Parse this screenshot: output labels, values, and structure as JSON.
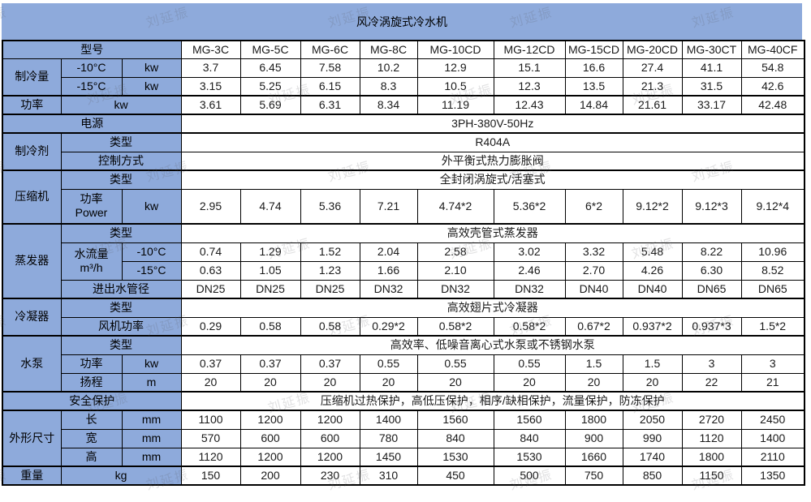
{
  "title": "风冷涡旋式冷水机",
  "watermark": {
    "text": "刘延振"
  },
  "colors": {
    "header_blue": "#8EAADB",
    "border": "#000000",
    "value_bg": "#FFFFFF"
  },
  "table": {
    "rows": [
      {
        "name": "row-model-header",
        "h": "header",
        "group_start": false,
        "cells": [
          {
            "text": "型号",
            "colspan": 3,
            "header": true,
            "name": "col-header-model"
          },
          {
            "text": "MG-3C",
            "name": "model-name"
          },
          {
            "text": "MG-5C",
            "name": "model-name"
          },
          {
            "text": "MG-6C",
            "name": "model-name"
          },
          {
            "text": "MG-8C",
            "name": "model-name"
          },
          {
            "text": "MG-10CD",
            "name": "model-name"
          },
          {
            "text": "MG-12CD",
            "name": "model-name"
          },
          {
            "text": "MG-15CD",
            "name": "model-name"
          },
          {
            "text": "MG-20CD",
            "name": "model-name"
          },
          {
            "text": "MG-30CT",
            "name": "model-name"
          },
          {
            "text": "MG-40CF",
            "name": "model-name"
          }
        ]
      },
      {
        "name": "row-cooling-minus10",
        "group_start": false,
        "cells": [
          {
            "text": "制冷量",
            "rowspan": 2,
            "header": true,
            "name": "row-label"
          },
          {
            "text": "-10°C",
            "header": true,
            "name": "sub-label"
          },
          {
            "text": "kw",
            "header": true,
            "name": "unit-label"
          },
          {
            "text": "3.7"
          },
          {
            "text": "6.45"
          },
          {
            "text": "7.58"
          },
          {
            "text": "10.2"
          },
          {
            "text": "12.9"
          },
          {
            "text": "15.1"
          },
          {
            "text": "16.6"
          },
          {
            "text": "27.4"
          },
          {
            "text": "41.1"
          },
          {
            "text": "54.8"
          }
        ]
      },
      {
        "name": "row-cooling-minus15",
        "group_start": false,
        "cells": [
          {
            "text": "-15°C",
            "header": true,
            "name": "sub-label"
          },
          {
            "text": "kw",
            "header": true,
            "name": "unit-label"
          },
          {
            "text": "3.15"
          },
          {
            "text": "5.25"
          },
          {
            "text": "6.15"
          },
          {
            "text": "8.3"
          },
          {
            "text": "10.5"
          },
          {
            "text": "12.3"
          },
          {
            "text": "13.5"
          },
          {
            "text": "21.3"
          },
          {
            "text": "31.5"
          },
          {
            "text": "42.6"
          }
        ]
      },
      {
        "name": "row-input-power",
        "group_start": true,
        "cells": [
          {
            "text": "功率",
            "header": true,
            "name": "row-label"
          },
          {
            "text": "kw",
            "colspan": 2,
            "header": true,
            "name": "unit-label"
          },
          {
            "text": "3.61"
          },
          {
            "text": "5.69"
          },
          {
            "text": "6.31"
          },
          {
            "text": "8.34"
          },
          {
            "text": "11.19"
          },
          {
            "text": "12.43"
          },
          {
            "text": "14.84"
          },
          {
            "text": "21.61"
          },
          {
            "text": "33.17"
          },
          {
            "text": "42.48"
          }
        ]
      },
      {
        "name": "row-power-supply",
        "group_start": true,
        "cells": [
          {
            "text": "电源",
            "colspan": 3,
            "header": true,
            "name": "row-label"
          },
          {
            "text": "3PH-380V-50Hz",
            "colspan": 10,
            "name": "span-value"
          }
        ]
      },
      {
        "name": "row-refrigerant-type",
        "group_start": true,
        "cells": [
          {
            "text": "制冷剂",
            "rowspan": 2,
            "header": true,
            "name": "row-label"
          },
          {
            "text": "类型",
            "colspan": 2,
            "header": true,
            "name": "sub-label"
          },
          {
            "text": "R404A",
            "colspan": 10,
            "name": "span-value"
          }
        ]
      },
      {
        "name": "row-refrigerant-control",
        "group_start": false,
        "cells": [
          {
            "text": "控制方式",
            "colspan": 2,
            "header": true,
            "name": "sub-label"
          },
          {
            "text": "外平衡式热力膨胀阀",
            "colspan": 10,
            "name": "span-value"
          }
        ]
      },
      {
        "name": "row-compressor-type",
        "group_start": true,
        "cells": [
          {
            "text": "压缩机",
            "rowspan": 2,
            "header": true,
            "name": "row-label"
          },
          {
            "text": "类型",
            "colspan": 2,
            "header": true,
            "name": "sub-label"
          },
          {
            "text": "全封闭涡旋式/活塞式",
            "colspan": 10,
            "name": "span-value"
          }
        ]
      },
      {
        "name": "row-compressor-power",
        "h": "tall",
        "group_start": false,
        "cells": [
          {
            "text": "功率\nPower",
            "header": true,
            "name": "sub-label"
          },
          {
            "text": "kw",
            "header": true,
            "name": "unit-label"
          },
          {
            "text": "2.95"
          },
          {
            "text": "4.74"
          },
          {
            "text": "5.36"
          },
          {
            "text": "7.21"
          },
          {
            "text": "4.74*2"
          },
          {
            "text": "5.36*2"
          },
          {
            "text": "6*2"
          },
          {
            "text": "9.12*2"
          },
          {
            "text": "9.12*3"
          },
          {
            "text": "9.12*4"
          }
        ]
      },
      {
        "name": "row-evaporator-type",
        "group_start": true,
        "cells": [
          {
            "text": "蒸发器",
            "rowspan": 4,
            "header": true,
            "name": "row-label"
          },
          {
            "text": "类型",
            "colspan": 2,
            "header": true,
            "name": "sub-label"
          },
          {
            "text": "高效壳管式蒸发器",
            "colspan": 10,
            "name": "span-value"
          }
        ]
      },
      {
        "name": "row-water-flow-minus10",
        "group_start": false,
        "cells": [
          {
            "text": "水流量\nm³/h",
            "rowspan": 2,
            "header": true,
            "name": "sub-label"
          },
          {
            "text": "-10°C",
            "header": true,
            "name": "unit-label"
          },
          {
            "text": "0.74"
          },
          {
            "text": "1.29"
          },
          {
            "text": "1.52"
          },
          {
            "text": "2.04"
          },
          {
            "text": "2.58"
          },
          {
            "text": "3.02"
          },
          {
            "text": "3.32"
          },
          {
            "text": "5.48"
          },
          {
            "text": "8.22"
          },
          {
            "text": "10.96"
          }
        ]
      },
      {
        "name": "row-water-flow-minus15",
        "group_start": false,
        "cells": [
          {
            "text": "-15°C",
            "header": true,
            "name": "unit-label"
          },
          {
            "text": "0.63"
          },
          {
            "text": "1.05"
          },
          {
            "text": "1.23"
          },
          {
            "text": "1.66"
          },
          {
            "text": "2.10"
          },
          {
            "text": "2.46"
          },
          {
            "text": "2.70"
          },
          {
            "text": "4.26"
          },
          {
            "text": "6.30"
          },
          {
            "text": "8.52"
          }
        ]
      },
      {
        "name": "row-pipe-diameter",
        "group_start": false,
        "cells": [
          {
            "text": "进出水管径",
            "colspan": 2,
            "header": true,
            "name": "sub-label"
          },
          {
            "text": "DN25"
          },
          {
            "text": "DN25"
          },
          {
            "text": "DN25"
          },
          {
            "text": "DN32"
          },
          {
            "text": "DN32"
          },
          {
            "text": "DN32"
          },
          {
            "text": "DN40"
          },
          {
            "text": "DN40"
          },
          {
            "text": "DN65"
          },
          {
            "text": "DN65"
          }
        ]
      },
      {
        "name": "row-condenser-type",
        "group_start": true,
        "cells": [
          {
            "text": "冷凝器",
            "rowspan": 2,
            "header": true,
            "name": "row-label"
          },
          {
            "text": "类型",
            "colspan": 2,
            "header": true,
            "name": "sub-label"
          },
          {
            "text": "高效翅片式冷凝器",
            "colspan": 10,
            "name": "span-value"
          }
        ]
      },
      {
        "name": "row-fan-power",
        "group_start": false,
        "cells": [
          {
            "text": "风机功率",
            "colspan": 2,
            "header": true,
            "name": "sub-label"
          },
          {
            "text": "0.29"
          },
          {
            "text": "0.58"
          },
          {
            "text": "0.58"
          },
          {
            "text": "0.29*2"
          },
          {
            "text": "0.58*2"
          },
          {
            "text": "0.58*2"
          },
          {
            "text": "0.67*2"
          },
          {
            "text": "0.937*2"
          },
          {
            "text": "0.937*3"
          },
          {
            "text": "1.5*2"
          }
        ]
      },
      {
        "name": "row-pump-type",
        "group_start": true,
        "cells": [
          {
            "text": "水泵",
            "rowspan": 3,
            "header": true,
            "name": "row-label"
          },
          {
            "text": "类型",
            "colspan": 2,
            "header": true,
            "name": "sub-label"
          },
          {
            "text": "高效率、低噪音离心式水泵或不锈钢水泵",
            "colspan": 10,
            "name": "span-value"
          }
        ]
      },
      {
        "name": "row-pump-power",
        "group_start": false,
        "cells": [
          {
            "text": "功率",
            "header": true,
            "name": "sub-label"
          },
          {
            "text": "kw",
            "header": true,
            "name": "unit-label"
          },
          {
            "text": "0.37"
          },
          {
            "text": "0.37"
          },
          {
            "text": "0.37"
          },
          {
            "text": "0.55"
          },
          {
            "text": "0.55"
          },
          {
            "text": "0.55"
          },
          {
            "text": "1.5"
          },
          {
            "text": "1.5"
          },
          {
            "text": "3"
          },
          {
            "text": "3"
          }
        ]
      },
      {
        "name": "row-pump-head",
        "group_start": false,
        "cells": [
          {
            "text": "扬程",
            "header": true,
            "name": "sub-label"
          },
          {
            "text": "m",
            "header": true,
            "name": "unit-label"
          },
          {
            "text": "20"
          },
          {
            "text": "20"
          },
          {
            "text": "20"
          },
          {
            "text": "20"
          },
          {
            "text": "20"
          },
          {
            "text": "20"
          },
          {
            "text": "20"
          },
          {
            "text": "20"
          },
          {
            "text": "22"
          },
          {
            "text": "21"
          }
        ]
      },
      {
        "name": "row-safety-protection",
        "group_start": true,
        "cells": [
          {
            "text": "安全保护",
            "colspan": 3,
            "header": true,
            "name": "row-label"
          },
          {
            "text": "压缩机过热保护，高低压保护，相序/缺相保护，流量保护，防冻保护",
            "colspan": 10,
            "name": "span-value"
          }
        ]
      },
      {
        "name": "row-dim-length",
        "group_start": true,
        "cells": [
          {
            "text": "外形尺寸",
            "rowspan": 3,
            "header": true,
            "name": "row-label"
          },
          {
            "text": "长",
            "header": true,
            "name": "sub-label"
          },
          {
            "text": "mm",
            "header": true,
            "name": "unit-label"
          },
          {
            "text": "1100"
          },
          {
            "text": "1200"
          },
          {
            "text": "1200"
          },
          {
            "text": "1400"
          },
          {
            "text": "1560"
          },
          {
            "text": "1560"
          },
          {
            "text": "1800"
          },
          {
            "text": "2050"
          },
          {
            "text": "2720"
          },
          {
            "text": "2450"
          }
        ]
      },
      {
        "name": "row-dim-width",
        "group_start": false,
        "cells": [
          {
            "text": "宽",
            "header": true,
            "name": "sub-label"
          },
          {
            "text": "mm",
            "header": true,
            "name": "unit-label"
          },
          {
            "text": "570"
          },
          {
            "text": "600"
          },
          {
            "text": "600"
          },
          {
            "text": "780"
          },
          {
            "text": "840"
          },
          {
            "text": "840"
          },
          {
            "text": "900"
          },
          {
            "text": "990"
          },
          {
            "text": "1120"
          },
          {
            "text": "1400"
          }
        ]
      },
      {
        "name": "row-dim-height",
        "group_start": false,
        "cells": [
          {
            "text": "高",
            "header": true,
            "name": "sub-label"
          },
          {
            "text": "mm",
            "header": true,
            "name": "unit-label"
          },
          {
            "text": "1120"
          },
          {
            "text": "1200"
          },
          {
            "text": "1200"
          },
          {
            "text": "1450"
          },
          {
            "text": "1530"
          },
          {
            "text": "1530"
          },
          {
            "text": "1660"
          },
          {
            "text": "1740"
          },
          {
            "text": "1800"
          },
          {
            "text": "2110"
          }
        ]
      },
      {
        "name": "row-weight",
        "group_start": true,
        "cells": [
          {
            "text": "重量",
            "header": true,
            "name": "row-label"
          },
          {
            "text": "kg",
            "colspan": 2,
            "header": true,
            "name": "unit-label"
          },
          {
            "text": "150"
          },
          {
            "text": "200"
          },
          {
            "text": "230"
          },
          {
            "text": "310"
          },
          {
            "text": "450"
          },
          {
            "text": "500"
          },
          {
            "text": "750"
          },
          {
            "text": "850"
          },
          {
            "text": "1150"
          },
          {
            "text": "1350"
          }
        ]
      }
    ]
  }
}
